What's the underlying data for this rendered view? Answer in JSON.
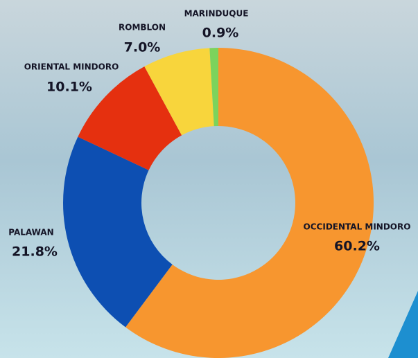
{
  "chart_data": {
    "type": "donut",
    "categories": [
      "OCCIDENTAL MINDORO",
      "PALAWAN",
      "ORIENTAL MINDORO",
      "ROMBLON",
      "MARINDUQUE"
    ],
    "values": [
      60.2,
      21.8,
      10.1,
      7.0,
      0.9
    ],
    "value_labels": [
      "60.2%",
      "21.8%",
      "10.1%",
      "7.0%",
      "0.9%"
    ],
    "colors": [
      "#f7962f",
      "#0d4fb2",
      "#e5300f",
      "#f8d53c",
      "#7cd35c"
    ]
  }
}
